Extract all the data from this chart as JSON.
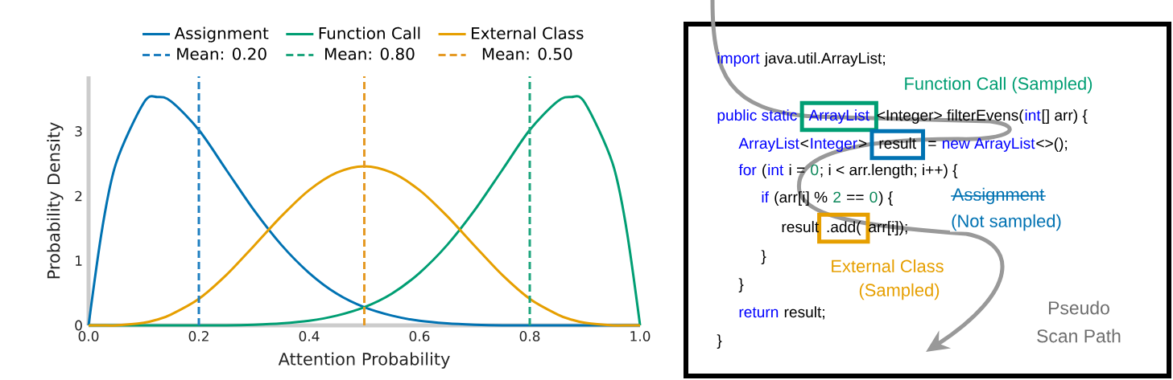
{
  "chart_data": [
    {
      "type": "line",
      "xlabel": "Attention Probability",
      "ylabel": "Probability Density",
      "marker": "none",
      "legend": "top",
      "x": [
        0,
        0.025,
        0.05,
        0.1,
        0.125,
        0.15,
        0.2,
        0.25,
        0.3,
        0.35,
        0.4,
        0.45,
        0.5,
        0.55,
        0.6,
        0.65,
        0.7,
        0.75,
        0.8,
        0.85,
        0.875,
        0.9,
        0.95,
        0.975,
        1
      ],
      "series": [
        {
          "name": "Assignment",
          "color": "#0072b2",
          "values": [
            0,
            1.51,
            2.51,
            3.44,
            3.53,
            3.46,
            3.02,
            2.4,
            1.78,
            1.24,
            0.81,
            0.49,
            0.28,
            0.15,
            0.07,
            0.03,
            0.01,
            0,
            0,
            0,
            0,
            0,
            0,
            0,
            0
          ]
        },
        {
          "name": "Function Call",
          "color": "#009e73",
          "values": [
            0,
            0,
            0,
            0,
            0,
            0,
            0,
            0,
            0.01,
            0.03,
            0.07,
            0.15,
            0.28,
            0.49,
            0.81,
            1.24,
            1.78,
            2.4,
            3.02,
            3.46,
            3.53,
            3.44,
            2.51,
            1.51,
            0
          ]
        },
        {
          "name": "External Class",
          "color": "#e69f00",
          "values": [
            0,
            0,
            0,
            0.04,
            0.09,
            0.17,
            0.41,
            0.78,
            1.23,
            1.69,
            2.09,
            2.36,
            2.46,
            2.36,
            2.09,
            1.69,
            1.23,
            0.78,
            0.41,
            0.17,
            0.09,
            0.04,
            0,
            0,
            0
          ]
        }
      ],
      "ref_lines": [
        {
          "axis": "x",
          "value": 0.2,
          "label": "Mean: 0.20",
          "color": "#1f7fc0",
          "line_style": "dashed"
        },
        {
          "axis": "x",
          "value": 0.8,
          "label": "Mean: 0.80",
          "color": "#1fa67e",
          "line_style": "dashed"
        },
        {
          "axis": "x",
          "value": 0.5,
          "label": "Mean: 0.50",
          "color": "#e59a25",
          "line_style": "dashed"
        }
      ],
      "xlim": [
        0,
        1
      ],
      "ylim": [
        0,
        3.85
      ],
      "xticks": [
        {
          "value": 0,
          "label": "0.0"
        },
        {
          "value": 0.2,
          "label": "0.2"
        },
        {
          "value": 0.4,
          "label": "0.4"
        },
        {
          "value": 0.6,
          "label": "0.6"
        },
        {
          "value": 0.8,
          "label": "0.8"
        },
        {
          "value": 1,
          "label": "1.0"
        }
      ],
      "yticks": [
        0,
        1,
        2,
        3
      ]
    },
    {
      "type": "other",
      "annotations": [
        "import",
        "java.util.ArrayList;",
        "public static",
        "ArrayList",
        "<Integer> filterEvens(",
        "int",
        "[] arr) {",
        "ArrayList",
        "<",
        "Integer",
        ">",
        "result",
        "=",
        "new ArrayList",
        "<>();",
        "for",
        "(",
        "int",
        "i =",
        "0",
        "; i < arr.length; i++) {",
        "if",
        "(arr[i] %",
        "2",
        "==",
        "0",
        ") {",
        "result",
        ".add(",
        "arr[i]);",
        "}",
        "}",
        "return",
        "result;",
        "}",
        "Function Call (Sampled)",
        "Assignment",
        "(Not sampled)",
        "External Class",
        "(Sampled)",
        "Pseudo",
        "Scan Path"
      ]
    }
  ]
}
